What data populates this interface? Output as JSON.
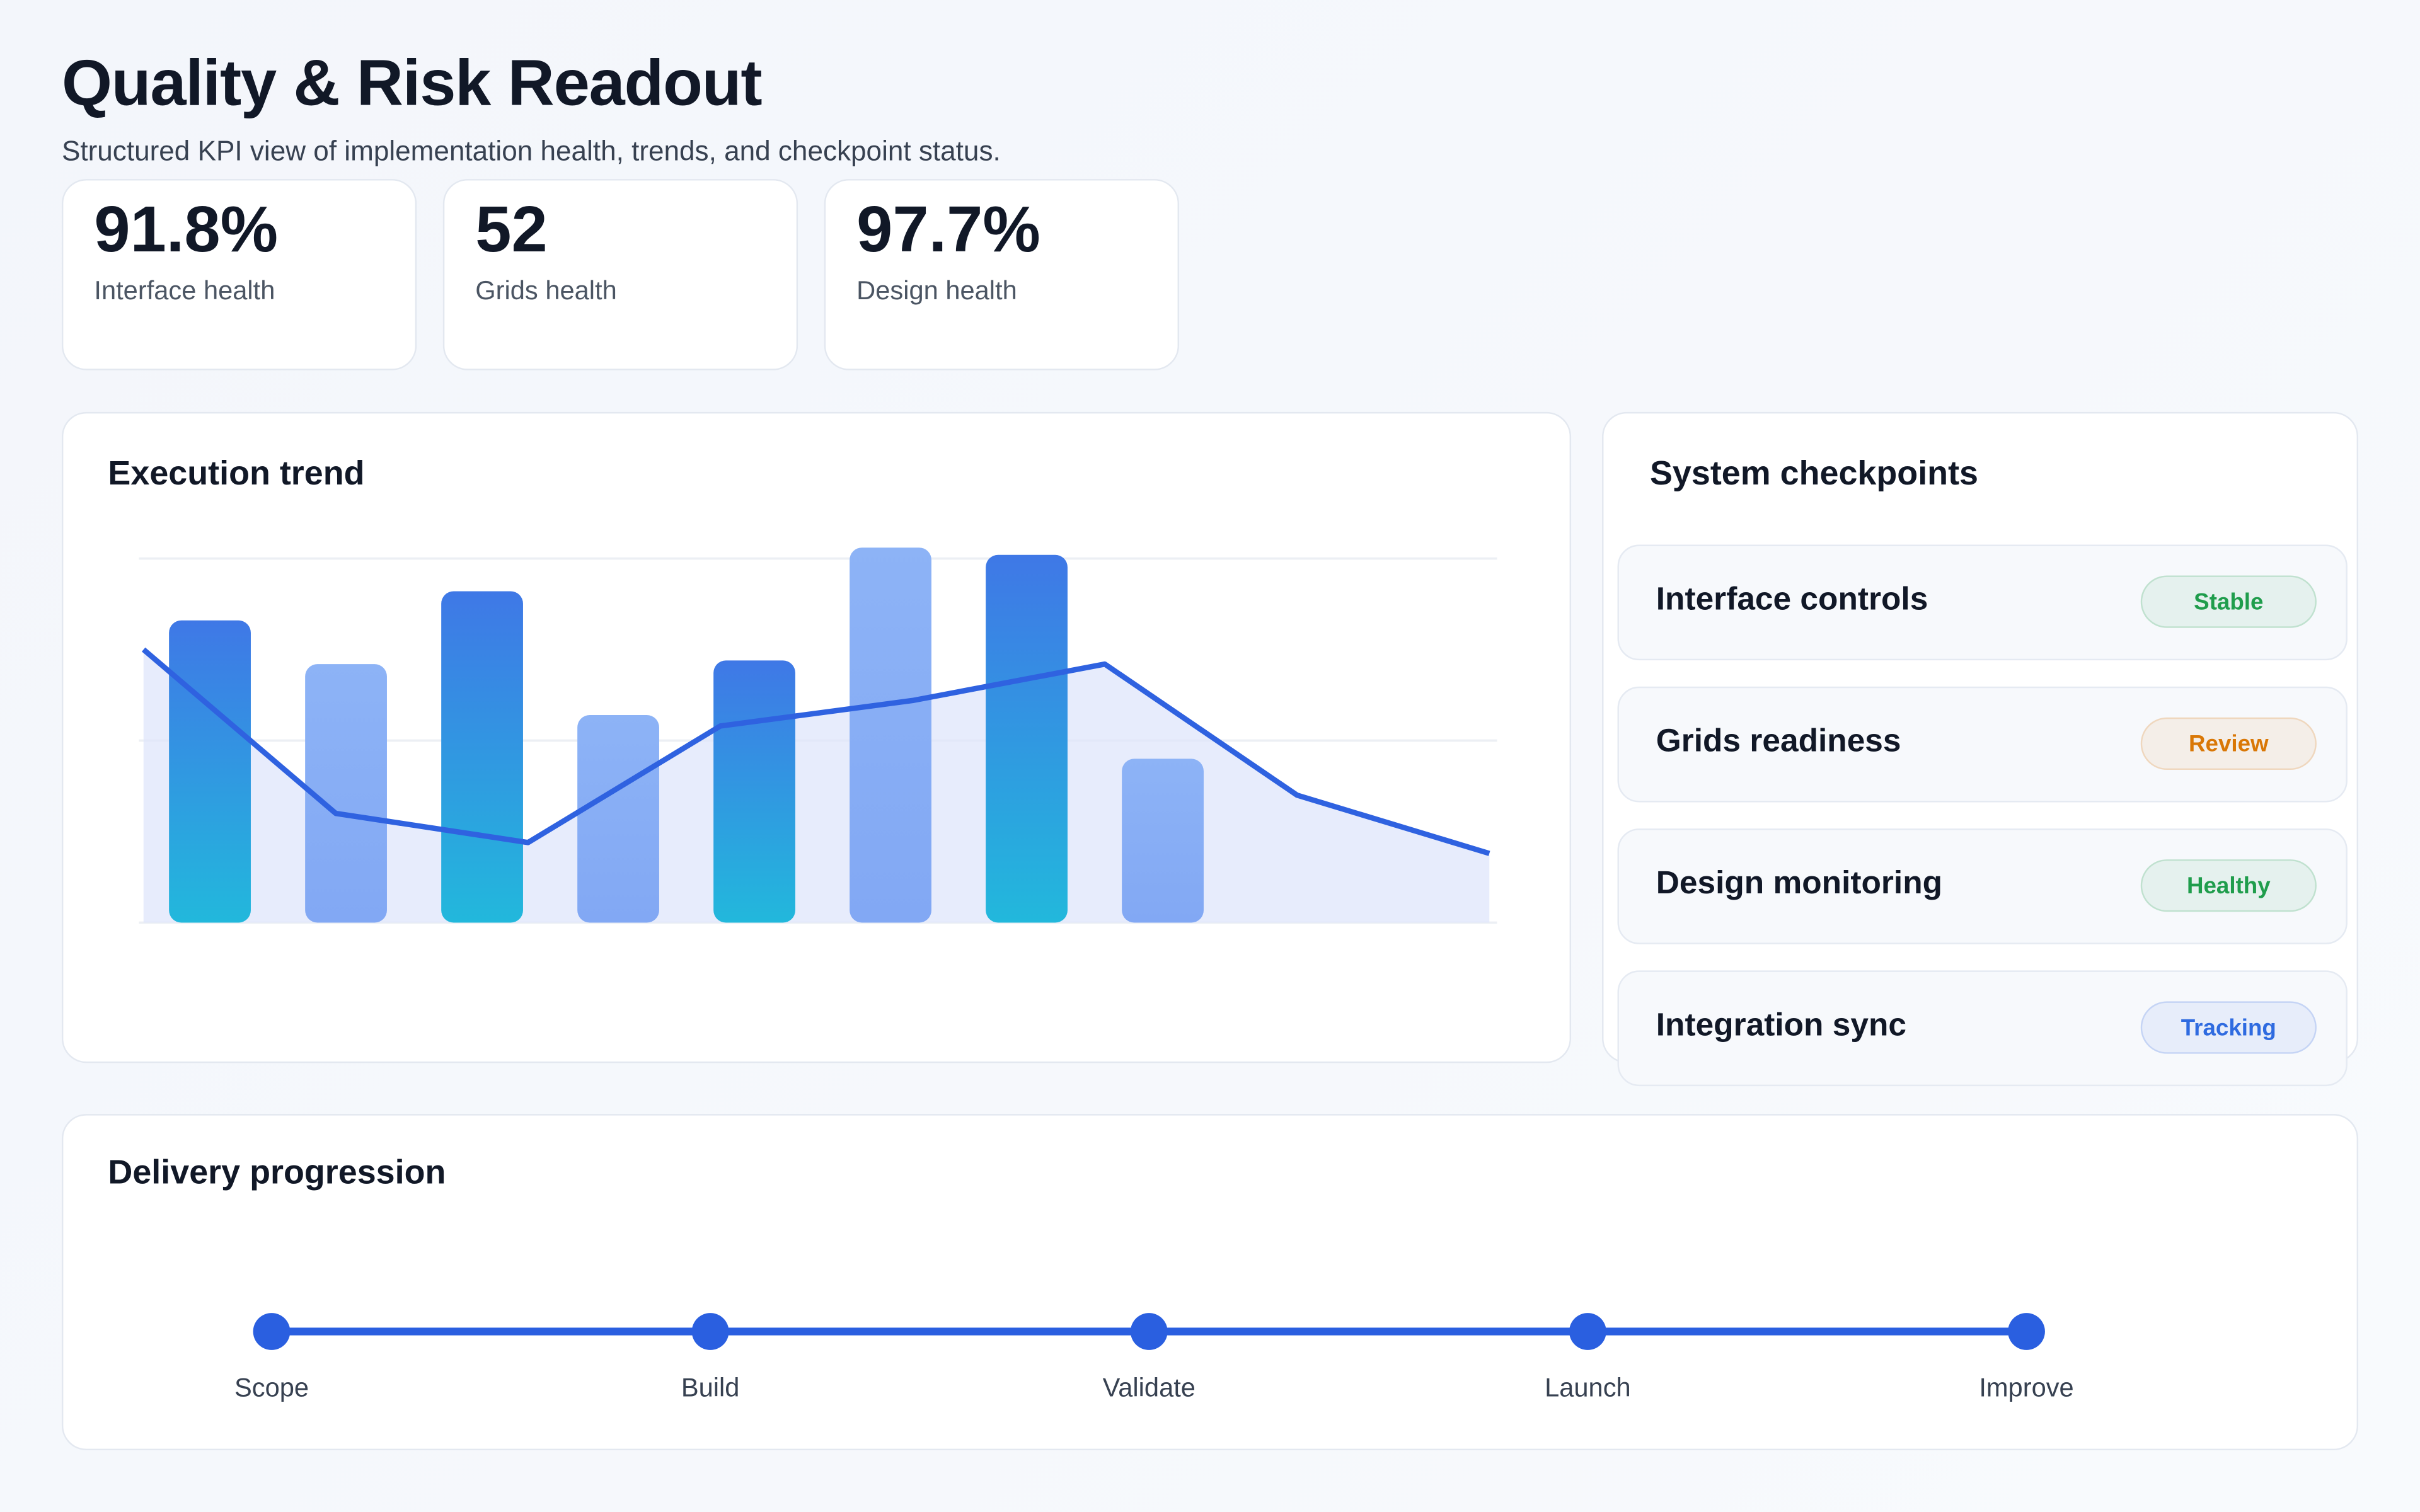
{
  "header": {
    "title": "Quality & Risk Readout",
    "subtitle": "Structured KPI view of implementation health, trends, and checkpoint status."
  },
  "kpis": [
    {
      "value": "91.8%",
      "label": "Interface health"
    },
    {
      "value": "52",
      "label": "Grids health"
    },
    {
      "value": "97.7%",
      "label": "Design health"
    }
  ],
  "trend": {
    "title": "Execution trend",
    "chart_data": {
      "type": "bar-line",
      "categories": [
        null,
        null,
        null,
        null,
        null,
        null,
        null,
        null
      ],
      "series": [
        {
          "type": "bar",
          "colors": [
            "#3f78e6",
            "#8db3f6"
          ],
          "values": [
            83,
            71,
            91,
            57,
            72,
            103,
            101,
            45
          ]
        },
        {
          "type": "line",
          "color": "#2f62e0",
          "values": [
            75,
            30,
            22,
            54,
            61,
            71,
            35,
            19
          ]
        }
      ],
      "ylim": [
        0,
        110
      ],
      "yticks": [
        0,
        50,
        100
      ],
      "grid": true
    }
  },
  "checkpoints": {
    "title": "System checkpoints",
    "items": [
      {
        "label": "Interface controls",
        "status": "Stable",
        "color": "#1f9d4c"
      },
      {
        "label": "Grids readiness",
        "status": "Review",
        "color": "#d97706"
      },
      {
        "label": "Design monitoring",
        "status": "Healthy",
        "color": "#1f9d4c"
      },
      {
        "label": "Integration sync",
        "status": "Tracking",
        "color": "#2f6be0"
      }
    ]
  },
  "delivery": {
    "title": "Delivery progression",
    "steps": [
      "Scope",
      "Build",
      "Validate",
      "Launch",
      "Improve"
    ]
  }
}
